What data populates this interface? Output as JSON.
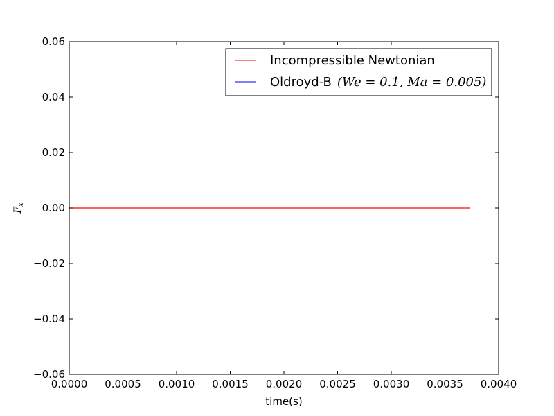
{
  "chart_data": {
    "type": "line",
    "xlabel": "time(s)",
    "ylabel": "F",
    "ylabel_subscript": "x",
    "xlim": [
      0.0,
      0.004
    ],
    "ylim": [
      -0.06,
      0.06
    ],
    "xticks": [
      0.0,
      0.0005,
      0.001,
      0.0015,
      0.002,
      0.0025,
      0.003,
      0.0035,
      0.004
    ],
    "xtick_labels": [
      "0.0000",
      "0.0005",
      "0.0010",
      "0.0015",
      "0.0020",
      "0.0025",
      "0.0030",
      "0.0035",
      "0.0040"
    ],
    "yticks": [
      -0.06,
      -0.04,
      -0.02,
      0.0,
      0.02,
      0.04,
      0.06
    ],
    "ytick_labels": [
      "−0.06",
      "−0.04",
      "−0.02",
      "0.00",
      "0.02",
      "0.04",
      "0.06"
    ],
    "grid": false,
    "legend_position": "upper right",
    "series": [
      {
        "name": "Incompressible Newtonian",
        "color": "#ff0000",
        "x": [
          0.0,
          0.00373
        ],
        "y": [
          0.0,
          0.0
        ]
      },
      {
        "name": "Oldroyd-B",
        "name_math": "(We = 0.1, Ma = 0.005)",
        "color": "#0000ff",
        "x": [],
        "y": []
      }
    ]
  }
}
